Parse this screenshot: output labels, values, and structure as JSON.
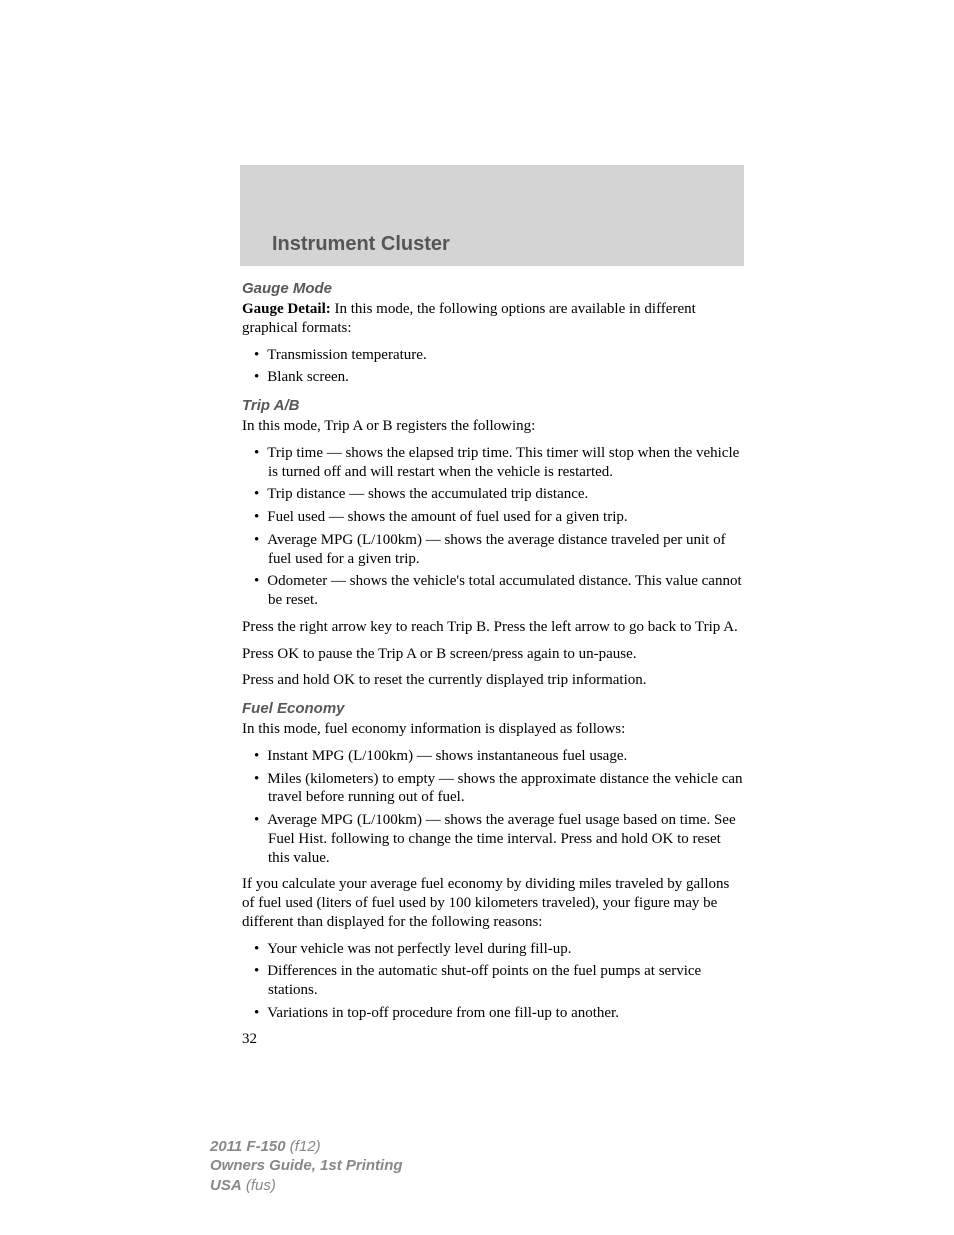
{
  "header": {
    "chapter_title": "Instrument Cluster"
  },
  "sections": {
    "gauge": {
      "heading": "Gauge Mode",
      "lead_bold": "Gauge Detail:",
      "lead_rest": " In this mode, the following options are available in different graphical formats:",
      "bullets": [
        "Transmission temperature.",
        "Blank screen."
      ]
    },
    "trip": {
      "heading": "Trip A/B",
      "intro": "In this mode, Trip A or B registers the following:",
      "bullets": [
        "Trip time — shows the elapsed trip time. This timer will stop when the vehicle is turned off and will restart when the vehicle is restarted.",
        "Trip distance — shows the accumulated trip distance.",
        "Fuel used — shows the amount of fuel used for a given trip.",
        "Average MPG (L/100km) — shows the average distance traveled per unit of fuel used for a given trip.",
        "Odometer — shows the vehicle's total accumulated distance. This value cannot be reset."
      ],
      "para1": "Press the right arrow key to reach Trip B. Press the left arrow to go back to Trip A.",
      "para2": "Press OK to pause the Trip A or B screen/press again to un-pause.",
      "para3": "Press and hold OK to reset the currently displayed trip information."
    },
    "fuel": {
      "heading": "Fuel Economy",
      "intro": "In this mode, fuel economy information is displayed as follows:",
      "bullets1": [
        "Instant MPG (L/100km) — shows instantaneous fuel usage.",
        "Miles (kilometers) to empty — shows the approximate distance the vehicle can travel before running out of fuel.",
        "Average MPG (L/100km) — shows the average fuel usage based on time. See Fuel Hist. following to change the time interval. Press and hold OK to reset this value."
      ],
      "para1": "If you calculate your average fuel economy by dividing miles traveled by gallons of fuel used (liters of fuel used by 100 kilometers traveled), your figure may be different than displayed for the following reasons:",
      "bullets2": [
        "Your vehicle was not perfectly level during fill-up.",
        "Differences in the automatic shut-off points on the fuel pumps at service stations.",
        "Variations in top-off procedure from one fill-up to another."
      ]
    }
  },
  "page_number": "32",
  "footer": {
    "line1_bold": "2011 F-150",
    "line1_ital": " (f12)",
    "line2": "Owners Guide, 1st Printing",
    "line3_bold": "USA",
    "line3_ital": " (fus)"
  },
  "colors": {
    "header_bg": "#d4d4d4",
    "heading_gray": "#555555",
    "footer_gray": "#888888",
    "body_black": "#000000"
  }
}
